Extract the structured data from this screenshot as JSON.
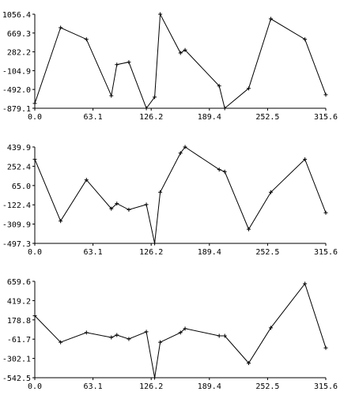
{
  "chart_data": [
    {
      "type": "line",
      "x": [
        0,
        28,
        56,
        83,
        89,
        102,
        121,
        130,
        136,
        158,
        163,
        200,
        206,
        232,
        256,
        293,
        315.6
      ],
      "y": [
        -780,
        780,
        540,
        -620,
        20,
        70,
        -879.1,
        -650,
        1056.4,
        260,
        320,
        -420,
        -879.1,
        -470,
        960,
        540,
        -600
      ],
      "xlim": [
        0,
        315.6
      ],
      "ylim": [
        -879.1,
        1056.4
      ],
      "xticks": [
        "0.0",
        "63.1",
        "126.2",
        "189.4",
        "252.5",
        "315.6"
      ],
      "yticks": [
        "1056.4",
        "669.3",
        "282.2",
        "-104.9",
        "-492.0",
        "-879.1"
      ],
      "title": "",
      "xlabel": "",
      "ylabel": ""
    },
    {
      "type": "line",
      "x": [
        0,
        28,
        56,
        83,
        89,
        102,
        121,
        130,
        136,
        158,
        163,
        200,
        206,
        232,
        256,
        293,
        315.6
      ],
      "y": [
        320,
        -280,
        120,
        -160,
        -110,
        -170,
        -120,
        -497.3,
        0,
        380,
        439.9,
        220,
        200,
        -360,
        0,
        320,
        -200
      ],
      "xlim": [
        0,
        315.6
      ],
      "ylim": [
        -497.3,
        439.9
      ],
      "xticks": [
        "0.0",
        "63.1",
        "126.2",
        "189.4",
        "252.5",
        "315.6"
      ],
      "yticks": [
        "439.9",
        "252.4",
        "65.0",
        "-122.4",
        "-309.9",
        "-497.3"
      ],
      "title": "",
      "xlabel": "",
      "ylabel": ""
    },
    {
      "type": "line",
      "x": [
        0,
        28,
        56,
        83,
        89,
        102,
        121,
        130,
        136,
        158,
        163,
        200,
        206,
        232,
        256,
        293,
        315.6
      ],
      "y": [
        230,
        -100,
        20,
        -40,
        -10,
        -60,
        30,
        -542.5,
        -100,
        20,
        70,
        -20,
        -20,
        -360,
        80,
        630,
        -170
      ],
      "xlim": [
        0,
        315.6
      ],
      "ylim": [
        -542.5,
        659.6
      ],
      "xticks": [
        "0.0",
        "63.1",
        "126.2",
        "189.4",
        "252.5",
        "315.6"
      ],
      "yticks": [
        "659.6",
        "419.2",
        "178.8",
        "-61.7",
        "-302.1",
        "-542.5"
      ],
      "title": "",
      "xlabel": "",
      "ylabel": ""
    }
  ],
  "colors": {
    "line": "#000000",
    "axis": "#000000",
    "background": "#ffffff"
  }
}
